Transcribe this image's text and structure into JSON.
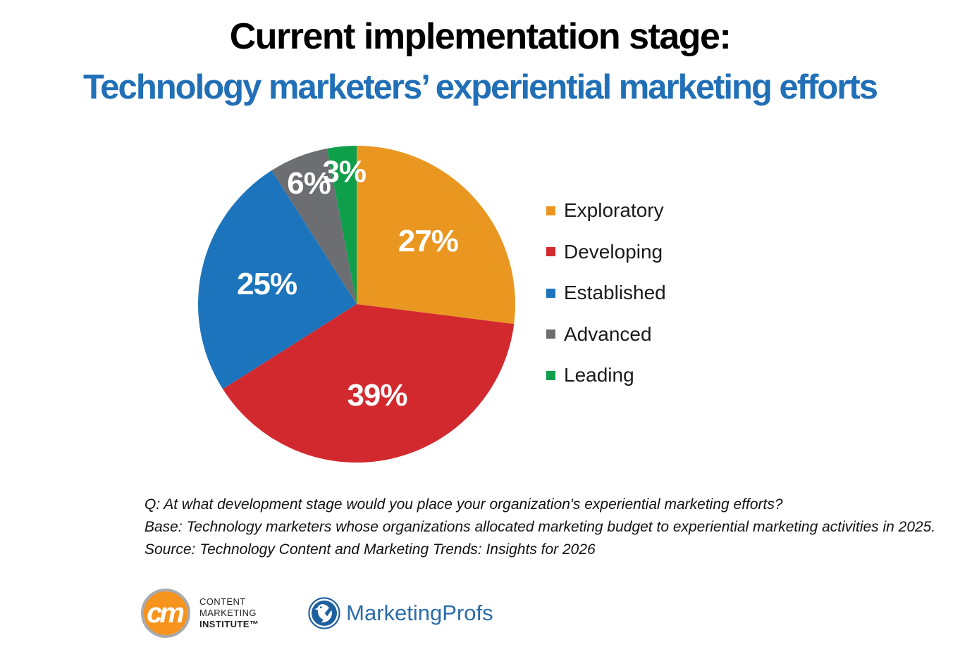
{
  "header": {
    "title": "Current implementation stage:",
    "subtitle": "Technology marketers’ experiential marketing efforts",
    "title_color": "#000000",
    "subtitle_color": "#2170B7"
  },
  "chart_data": {
    "type": "pie",
    "title": "Current implementation stage: Technology marketers’ experiential marketing efforts",
    "start_angle_deg": 0,
    "direction": "clockwise",
    "legend_position": "right",
    "value_label_format": "{value}%",
    "value_label_color": "#FFFFFF",
    "slices": [
      {
        "label": "Exploratory",
        "value": 27,
        "color": "#EA9722",
        "label_radius": 0.6
      },
      {
        "label": "Developing",
        "value": 39,
        "color": "#D2292E",
        "label_radius": 0.59
      },
      {
        "label": "Established",
        "value": 25,
        "color": "#1C75BC",
        "label_radius": 0.58
      },
      {
        "label": "Advanced",
        "value": 6,
        "color": "#6D6E71",
        "label_radius": 0.82
      },
      {
        "label": "Leading",
        "value": 3,
        "color": "#0F9F4B",
        "label_radius": 0.84
      }
    ]
  },
  "footer": {
    "question": "Q: At what development stage would you place your organization's experiential marketing efforts?",
    "base": "Base: Technology marketers whose organizations allocated marketing budget to experiential marketing activities in 2025.",
    "source": "Source: Technology Content and Marketing Trends: Insights for 2026"
  },
  "logos": {
    "cmi": {
      "monogram": "cm",
      "line1": "CONTENT",
      "line2": "MARKETING",
      "line3": "INSTITUTE™",
      "circle_color": "#F7941E",
      "ring_color": "#A8AAAD"
    },
    "marketingprofs": {
      "name": "MarketingProfs",
      "text_color": "#2B6CA9",
      "circle_color": "#1E5F9F"
    }
  }
}
